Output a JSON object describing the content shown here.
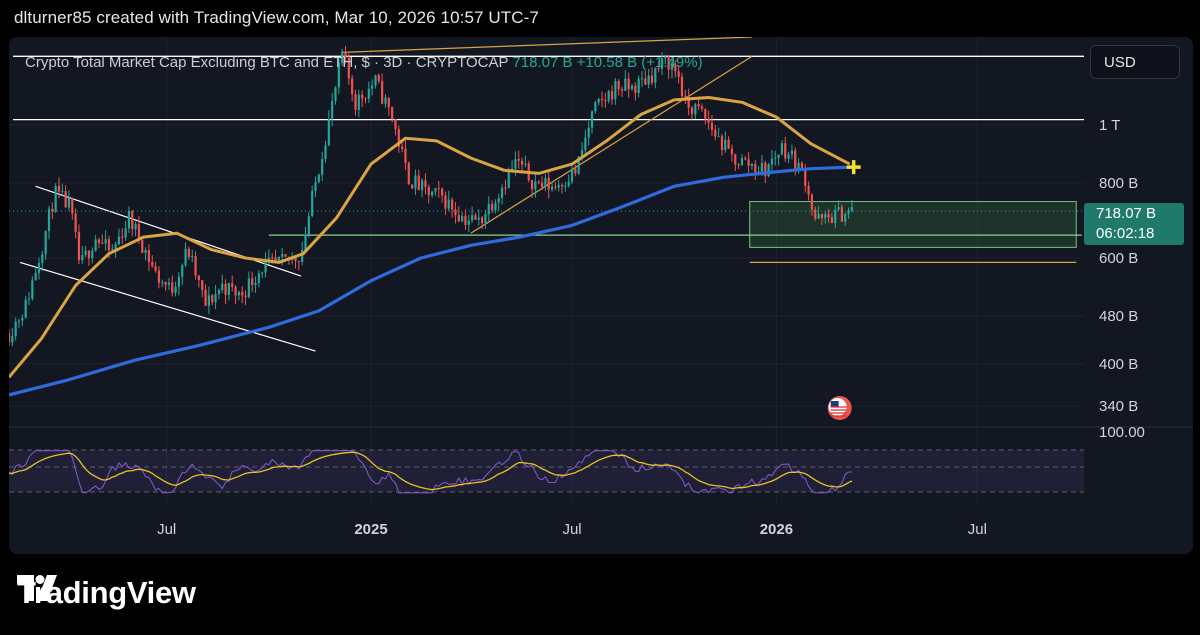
{
  "header": {
    "attribution": "dlturner85 created with TradingView.com, Mar 10, 2026 10:57 UTC-7"
  },
  "legend": {
    "title": "Crypto Total Market Cap Excluding BTC and ETH, $ · 3D · CRYPTOCAP",
    "last": "718.07 B",
    "change": "+10.58 B (+1.49%)"
  },
  "currency_button": "USD",
  "price_label": {
    "value": "718.07 B",
    "countdown": "06:02:18"
  },
  "rsi_level_label": "100.00",
  "brand": "TradingView",
  "colors": {
    "background": "#131722",
    "up": "#26a69a",
    "down": "#ef5350",
    "ma_short": "#d9a441",
    "ma_long": "#2f6bdc",
    "rsi": "#7e57c2",
    "rsi_signal": "#e6c229",
    "box": "#4caf50"
  },
  "icons": {
    "flag": "us-flag-icon",
    "logo": "tradingview-logo-icon",
    "cross": "plus-cross-icon"
  },
  "chart_data": {
    "type": "candlestick",
    "scale": "log",
    "ylim": [
      320,
      1400
    ],
    "y_ticks": [
      {
        "value": 1000,
        "label": "1 T"
      },
      {
        "value": 800,
        "label": "800 B"
      },
      {
        "value": 600,
        "label": "600 B"
      },
      {
        "value": 480,
        "label": "480 B"
      },
      {
        "value": 400,
        "label": "400 B"
      },
      {
        "value": 340,
        "label": "340 B"
      }
    ],
    "x_range": [
      "2024-02-10",
      "2026-10-05"
    ],
    "x_ticks": [
      {
        "date": "2024-07-01",
        "label": "Jul",
        "bold": false
      },
      {
        "date": "2025-01-01",
        "label": "2025",
        "bold": true
      },
      {
        "date": "2025-07-01",
        "label": "Jul",
        "bold": false
      },
      {
        "date": "2026-01-01",
        "label": "2026",
        "bold": true
      },
      {
        "date": "2026-07-01",
        "label": "Jul",
        "bold": false
      }
    ],
    "price_path": [
      [
        "2024-02-10",
        450
      ],
      [
        "2024-02-25",
        500
      ],
      [
        "2024-03-12",
        640
      ],
      [
        "2024-03-22",
        770
      ],
      [
        "2024-04-05",
        730
      ],
      [
        "2024-04-14",
        580
      ],
      [
        "2024-04-28",
        650
      ],
      [
        "2024-05-12",
        610
      ],
      [
        "2024-05-28",
        700
      ],
      [
        "2024-06-08",
        640
      ],
      [
        "2024-06-22",
        560
      ],
      [
        "2024-07-05",
        530
      ],
      [
        "2024-07-20",
        620
      ],
      [
        "2024-08-05",
        500
      ],
      [
        "2024-08-20",
        540
      ],
      [
        "2024-09-05",
        520
      ],
      [
        "2024-09-25",
        580
      ],
      [
        "2024-10-15",
        590
      ],
      [
        "2024-10-30",
        610
      ],
      [
        "2024-11-12",
        800
      ],
      [
        "2024-11-28",
        1100
      ],
      [
        "2024-12-06",
        1310
      ],
      [
        "2024-12-18",
        1090
      ],
      [
        "2025-01-05",
        1180
      ],
      [
        "2025-01-20",
        1030
      ],
      [
        "2025-02-03",
        820
      ],
      [
        "2025-02-20",
        770
      ],
      [
        "2025-03-05",
        760
      ],
      [
        "2025-03-25",
        700
      ],
      [
        "2025-04-08",
        690
      ],
      [
        "2025-04-25",
        770
      ],
      [
        "2025-05-12",
        870
      ],
      [
        "2025-05-28",
        800
      ],
      [
        "2025-06-15",
        790
      ],
      [
        "2025-07-05",
        840
      ],
      [
        "2025-07-20",
        1050
      ],
      [
        "2025-08-10",
        1160
      ],
      [
        "2025-08-25",
        1150
      ],
      [
        "2025-09-10",
        1210
      ],
      [
        "2025-09-25",
        1280
      ],
      [
        "2025-10-06",
        1200
      ],
      [
        "2025-10-10",
        1080
      ],
      [
        "2025-10-25",
        1050
      ],
      [
        "2025-11-08",
        960
      ],
      [
        "2025-11-22",
        880
      ],
      [
        "2025-12-08",
        860
      ],
      [
        "2025-12-22",
        840
      ],
      [
        "2026-01-06",
        920
      ],
      [
        "2026-01-16",
        880
      ],
      [
        "2026-01-28",
        810
      ],
      [
        "2026-02-04",
        700
      ],
      [
        "2026-02-12",
        690
      ],
      [
        "2026-02-20",
        705
      ],
      [
        "2026-03-01",
        712
      ],
      [
        "2026-03-10",
        718.07
      ]
    ],
    "ma_short": [
      [
        "2024-02-10",
        380
      ],
      [
        "2024-03-10",
        440
      ],
      [
        "2024-04-10",
        540
      ],
      [
        "2024-05-10",
        610
      ],
      [
        "2024-06-10",
        650
      ],
      [
        "2024-07-10",
        660
      ],
      [
        "2024-08-10",
        620
      ],
      [
        "2024-09-10",
        600
      ],
      [
        "2024-10-10",
        590
      ],
      [
        "2024-11-01",
        610
      ],
      [
        "2024-12-01",
        700
      ],
      [
        "2025-01-01",
        860
      ],
      [
        "2025-02-01",
        950
      ],
      [
        "2025-03-01",
        940
      ],
      [
        "2025-04-01",
        880
      ],
      [
        "2025-05-01",
        840
      ],
      [
        "2025-06-01",
        830
      ],
      [
        "2025-07-01",
        860
      ],
      [
        "2025-08-01",
        940
      ],
      [
        "2025-09-01",
        1040
      ],
      [
        "2025-10-01",
        1100
      ],
      [
        "2025-11-01",
        1110
      ],
      [
        "2025-12-01",
        1090
      ],
      [
        "2026-01-01",
        1030
      ],
      [
        "2026-02-01",
        930
      ],
      [
        "2026-03-08",
        860
      ]
    ],
    "ma_long": [
      [
        "2024-02-10",
        355
      ],
      [
        "2024-04-01",
        375
      ],
      [
        "2024-06-01",
        405
      ],
      [
        "2024-08-01",
        430
      ],
      [
        "2024-10-01",
        460
      ],
      [
        "2024-11-15",
        490
      ],
      [
        "2025-01-01",
        550
      ],
      [
        "2025-02-15",
        600
      ],
      [
        "2025-04-01",
        630
      ],
      [
        "2025-05-15",
        650
      ],
      [
        "2025-07-01",
        680
      ],
      [
        "2025-08-15",
        730
      ],
      [
        "2025-10-01",
        790
      ],
      [
        "2025-11-15",
        818
      ],
      [
        "2026-01-01",
        835
      ],
      [
        "2026-02-01",
        845
      ],
      [
        "2026-03-08",
        850
      ]
    ],
    "horizontal_lines": [
      1300,
      1020
    ],
    "dotted_last_price": 718.07,
    "trendlines": [
      {
        "id": "channel-upper",
        "from": [
          "2024-03-05",
          790
        ],
        "to": [
          "2024-10-30",
          560
        ]
      },
      {
        "id": "channel-lower",
        "from": [
          "2024-02-20",
          590
        ],
        "to": [
          "2024-11-12",
          420
        ]
      },
      {
        "id": "rising-wedge-lower",
        "from": [
          "2025-04-01",
          660
        ],
        "to": [
          "2025-12-10",
          1300
        ]
      },
      {
        "id": "rising-wedge-upper",
        "from": [
          "2024-12-06",
          1320
        ],
        "to": [
          "2025-12-10",
          1400
        ]
      },
      {
        "id": "support-level",
        "from": [
          "2024-10-01",
          655
        ],
        "to": [
          "2026-10-03",
          655
        ]
      },
      {
        "id": "lower-support",
        "from": [
          "2025-12-08",
          590
        ],
        "to": [
          "2026-09-28",
          590
        ]
      }
    ],
    "zone_box": {
      "from": "2025-12-08",
      "to": "2026-09-28",
      "low": 625,
      "high": 745
    },
    "rsi_levels": [
      "70",
      "50",
      "30"
    ]
  }
}
